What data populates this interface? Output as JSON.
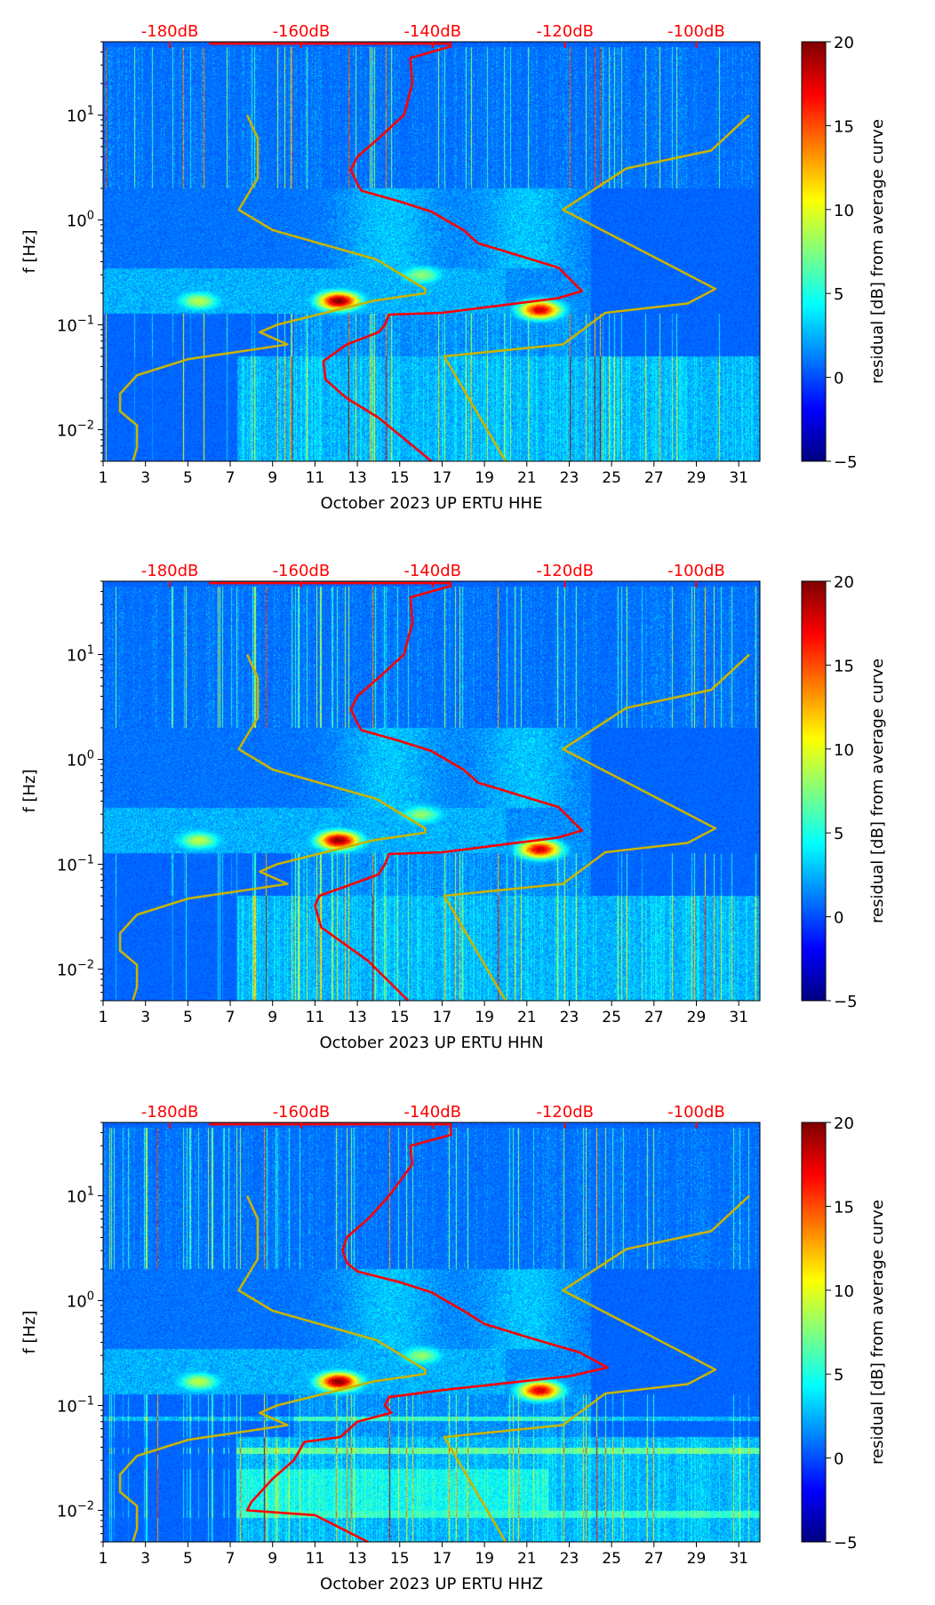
{
  "chart_data": [
    {
      "type": "heatmap",
      "xlabel": "October 2023 UP ERTU  HHE",
      "ylabel": "f [Hz]",
      "xlim": [
        1,
        32
      ],
      "ylim": [
        0.005,
        50
      ],
      "yscale": "log",
      "xticks": [
        "1",
        "3",
        "5",
        "7",
        "9",
        "11",
        "13",
        "15",
        "17",
        "19",
        "21",
        "23",
        "25",
        "27",
        "29",
        "31"
      ],
      "yticks": [
        {
          "value": 0.01,
          "base": "10",
          "exp": "−2"
        },
        {
          "value": 0.1,
          "base": "10",
          "exp": "−1"
        },
        {
          "value": 1,
          "base": "10",
          "exp": "0"
        },
        {
          "value": 10,
          "base": "10",
          "exp": "1"
        }
      ],
      "top_axis": [
        {
          "label": "-180dB",
          "day": 4.15
        },
        {
          "label": "-160dB",
          "day": 10.35
        },
        {
          "label": "-140dB",
          "day": 16.55
        },
        {
          "label": "-120dB",
          "day": 22.8
        },
        {
          "label": "-100dB",
          "day": 29.0
        }
      ],
      "colorbar": {
        "label": "residual [dB] from average curve",
        "min": -5,
        "max": 20,
        "ticks": [
          "−5",
          "0",
          "5",
          "10",
          "15",
          "20"
        ],
        "colormap": "jet"
      },
      "hotspots": [
        {
          "day": 12.1,
          "freq": 0.17,
          "value": 20
        },
        {
          "day": 21.6,
          "freq": 0.14,
          "value": 18
        },
        {
          "day": 5.5,
          "freq": 0.17,
          "value": 9
        },
        {
          "day": 16,
          "freq": 0.3,
          "value": 8
        }
      ],
      "series": [
        {
          "name": "PSD mean",
          "color": "#ff0000",
          "points": [
            [
              6,
              48
            ],
            [
              17.4,
              48
            ],
            [
              17.4,
              45
            ],
            [
              15.5,
              35
            ],
            [
              15.6,
              20
            ],
            [
              15.2,
              10
            ],
            [
              14,
              6
            ],
            [
              13,
              4
            ],
            [
              12.7,
              3
            ],
            [
              13,
              2.2
            ],
            [
              13.2,
              1.9
            ],
            [
              15,
              1.5
            ],
            [
              16.5,
              1.2
            ],
            [
              18,
              0.8
            ],
            [
              18.7,
              0.6
            ],
            [
              20,
              0.5
            ],
            [
              22.5,
              0.35
            ],
            [
              23.6,
              0.21
            ],
            [
              22.5,
              0.18
            ],
            [
              17,
              0.13
            ],
            [
              14.5,
              0.125
            ],
            [
              14.3,
              0.1
            ],
            [
              14,
              0.085
            ],
            [
              12.5,
              0.065
            ],
            [
              11.4,
              0.045
            ],
            [
              11.5,
              0.03
            ],
            [
              12.5,
              0.02
            ],
            [
              14,
              0.013
            ],
            [
              16.5,
              0.005
            ]
          ]
        },
        {
          "name": "NLNM",
          "color": "#c8b400",
          "points": [
            [
              7.8,
              10
            ],
            [
              8.3,
              6
            ],
            [
              8.3,
              2.5
            ],
            [
              7.4,
              1.25
            ],
            [
              9,
              0.8
            ],
            [
              13.9,
              0.42
            ],
            [
              16.2,
              0.22
            ],
            [
              16.2,
              0.2
            ],
            [
              13.8,
              0.17
            ],
            [
              9.2,
              0.1
            ],
            [
              8.4,
              0.085
            ],
            [
              9.7,
              0.065
            ],
            [
              5,
              0.047
            ],
            [
              2.6,
              0.033
            ],
            [
              1.8,
              0.022
            ],
            [
              1.8,
              0.015
            ],
            [
              2.6,
              0.011
            ],
            [
              2.6,
              0.0067
            ],
            [
              2.4,
              0.005
            ]
          ]
        },
        {
          "name": "NHNM",
          "color": "#c8b400",
          "points": [
            [
              31.5,
              10
            ],
            [
              29.7,
              4.6
            ],
            [
              25.7,
              3.1
            ],
            [
              22.7,
              1.25
            ],
            [
              29.9,
              0.22
            ],
            [
              28.6,
              0.16
            ],
            [
              24.7,
              0.13
            ],
            [
              22.7,
              0.065
            ],
            [
              17.1,
              0.05
            ],
            [
              20,
              0.005
            ]
          ]
        }
      ]
    },
    {
      "type": "heatmap",
      "xlabel": "October 2023 UP ERTU  HHN",
      "ylabel": "f [Hz]",
      "xlim": [
        1,
        32
      ],
      "ylim": [
        0.005,
        50
      ],
      "yscale": "log",
      "xticks": [
        "1",
        "3",
        "5",
        "7",
        "9",
        "11",
        "13",
        "15",
        "17",
        "19",
        "21",
        "23",
        "25",
        "27",
        "29",
        "31"
      ],
      "yticks": [
        {
          "value": 0.01,
          "base": "10",
          "exp": "−2"
        },
        {
          "value": 0.1,
          "base": "10",
          "exp": "−1"
        },
        {
          "value": 1,
          "base": "10",
          "exp": "0"
        },
        {
          "value": 10,
          "base": "10",
          "exp": "1"
        }
      ],
      "top_axis": [
        {
          "label": "-180dB",
          "day": 4.15
        },
        {
          "label": "-160dB",
          "day": 10.35
        },
        {
          "label": "-140dB",
          "day": 16.55
        },
        {
          "label": "-120dB",
          "day": 22.8
        },
        {
          "label": "-100dB",
          "day": 29.0
        }
      ],
      "colorbar": {
        "label": "residual [dB] from average curve",
        "min": -5,
        "max": 20,
        "ticks": [
          "−5",
          "0",
          "5",
          "10",
          "15",
          "20"
        ],
        "colormap": "jet"
      },
      "hotspots": [
        {
          "day": 12.1,
          "freq": 0.17,
          "value": 20
        },
        {
          "day": 21.6,
          "freq": 0.14,
          "value": 18
        },
        {
          "day": 5.5,
          "freq": 0.17,
          "value": 9
        },
        {
          "day": 16,
          "freq": 0.3,
          "value": 8
        }
      ],
      "series": [
        {
          "name": "PSD mean",
          "color": "#ff0000",
          "points": [
            [
              6,
              48
            ],
            [
              17.4,
              48
            ],
            [
              17.4,
              45
            ],
            [
              15.5,
              35
            ],
            [
              15.6,
              20
            ],
            [
              15.2,
              10
            ],
            [
              14,
              6
            ],
            [
              13,
              4
            ],
            [
              12.7,
              3
            ],
            [
              13,
              2.2
            ],
            [
              13.2,
              1.9
            ],
            [
              15,
              1.5
            ],
            [
              16.5,
              1.2
            ],
            [
              18,
              0.8
            ],
            [
              18.7,
              0.6
            ],
            [
              20,
              0.5
            ],
            [
              22.5,
              0.35
            ],
            [
              23.6,
              0.21
            ],
            [
              22.5,
              0.18
            ],
            [
              17,
              0.13
            ],
            [
              14.5,
              0.125
            ],
            [
              14.3,
              0.1
            ],
            [
              14,
              0.08
            ],
            [
              12.5,
              0.062
            ],
            [
              11.2,
              0.05
            ],
            [
              11,
              0.04
            ],
            [
              11.3,
              0.025
            ],
            [
              13.5,
              0.012
            ],
            [
              15.4,
              0.005
            ]
          ]
        },
        {
          "name": "NLNM",
          "color": "#c8b400",
          "points": [
            [
              7.8,
              10
            ],
            [
              8.3,
              6
            ],
            [
              8.3,
              2.5
            ],
            [
              7.4,
              1.25
            ],
            [
              9,
              0.8
            ],
            [
              13.9,
              0.42
            ],
            [
              16.2,
              0.22
            ],
            [
              16.2,
              0.2
            ],
            [
              13.8,
              0.17
            ],
            [
              9.2,
              0.1
            ],
            [
              8.4,
              0.085
            ],
            [
              9.7,
              0.065
            ],
            [
              5,
              0.047
            ],
            [
              2.6,
              0.033
            ],
            [
              1.8,
              0.022
            ],
            [
              1.8,
              0.015
            ],
            [
              2.6,
              0.011
            ],
            [
              2.6,
              0.0067
            ],
            [
              2.4,
              0.005
            ]
          ]
        },
        {
          "name": "NHNM",
          "color": "#c8b400",
          "points": [
            [
              31.5,
              10
            ],
            [
              29.7,
              4.6
            ],
            [
              25.7,
              3.1
            ],
            [
              22.7,
              1.25
            ],
            [
              29.9,
              0.22
            ],
            [
              28.6,
              0.16
            ],
            [
              24.7,
              0.13
            ],
            [
              22.7,
              0.065
            ],
            [
              17.1,
              0.05
            ],
            [
              20,
              0.005
            ]
          ]
        }
      ]
    },
    {
      "type": "heatmap",
      "xlabel": "October 2023 UP ERTU  HHZ",
      "ylabel": "f [Hz]",
      "xlim": [
        1,
        32
      ],
      "ylim": [
        0.005,
        50
      ],
      "yscale": "log",
      "xticks": [
        "1",
        "3",
        "5",
        "7",
        "9",
        "11",
        "13",
        "15",
        "17",
        "19",
        "21",
        "23",
        "25",
        "27",
        "29",
        "31"
      ],
      "yticks": [
        {
          "value": 0.01,
          "base": "10",
          "exp": "−2"
        },
        {
          "value": 0.1,
          "base": "10",
          "exp": "−1"
        },
        {
          "value": 1,
          "base": "10",
          "exp": "0"
        },
        {
          "value": 10,
          "base": "10",
          "exp": "1"
        }
      ],
      "top_axis": [
        {
          "label": "-180dB",
          "day": 4.15
        },
        {
          "label": "-160dB",
          "day": 10.35
        },
        {
          "label": "-140dB",
          "day": 16.55
        },
        {
          "label": "-120dB",
          "day": 22.8
        },
        {
          "label": "-100dB",
          "day": 29.0
        }
      ],
      "colorbar": {
        "label": "residual [dB] from average curve",
        "min": -5,
        "max": 20,
        "ticks": [
          "−5",
          "0",
          "5",
          "10",
          "15",
          "20"
        ],
        "colormap": "jet"
      },
      "hotspots": [
        {
          "day": 12.1,
          "freq": 0.17,
          "value": 20
        },
        {
          "day": 21.6,
          "freq": 0.14,
          "value": 18
        },
        {
          "day": 5.5,
          "freq": 0.17,
          "value": 9
        },
        {
          "day": 16,
          "freq": 0.3,
          "value": 8
        }
      ],
      "series": [
        {
          "name": "PSD mean",
          "color": "#ff0000",
          "points": [
            [
              6,
              48
            ],
            [
              17.4,
              48
            ],
            [
              17.4,
              38
            ],
            [
              15.5,
              30
            ],
            [
              15.6,
              20
            ],
            [
              14.5,
              10
            ],
            [
              13.5,
              6
            ],
            [
              12.5,
              4
            ],
            [
              12.3,
              3
            ],
            [
              12.5,
              2.3
            ],
            [
              13,
              1.9
            ],
            [
              15,
              1.5
            ],
            [
              16.5,
              1.2
            ],
            [
              18,
              0.8
            ],
            [
              19,
              0.6
            ],
            [
              21,
              0.45
            ],
            [
              23.5,
              0.32
            ],
            [
              24.8,
              0.23
            ],
            [
              23,
              0.19
            ],
            [
              17,
              0.14
            ],
            [
              14.5,
              0.12
            ],
            [
              14.3,
              0.1
            ],
            [
              14.6,
              0.085
            ],
            [
              13,
              0.07
            ],
            [
              12.2,
              0.05
            ],
            [
              10.5,
              0.045
            ],
            [
              10,
              0.03
            ],
            [
              9,
              0.02
            ],
            [
              8,
              0.012
            ],
            [
              7.8,
              0.01
            ],
            [
              11,
              0.009
            ],
            [
              13.5,
              0.005
            ]
          ]
        },
        {
          "name": "NLNM",
          "color": "#c8b400",
          "points": [
            [
              7.8,
              10
            ],
            [
              8.3,
              6
            ],
            [
              8.3,
              2.5
            ],
            [
              7.4,
              1.25
            ],
            [
              9,
              0.8
            ],
            [
              13.9,
              0.42
            ],
            [
              16.2,
              0.22
            ],
            [
              16.2,
              0.2
            ],
            [
              13.8,
              0.17
            ],
            [
              9.2,
              0.1
            ],
            [
              8.4,
              0.085
            ],
            [
              9.7,
              0.065
            ],
            [
              5,
              0.047
            ],
            [
              2.6,
              0.033
            ],
            [
              1.8,
              0.022
            ],
            [
              1.8,
              0.015
            ],
            [
              2.6,
              0.011
            ],
            [
              2.6,
              0.0067
            ],
            [
              2.4,
              0.005
            ]
          ]
        },
        {
          "name": "NHNM",
          "color": "#c8b400",
          "points": [
            [
              31.5,
              10
            ],
            [
              29.7,
              4.6
            ],
            [
              25.7,
              3.1
            ],
            [
              22.7,
              1.25
            ],
            [
              29.9,
              0.22
            ],
            [
              28.6,
              0.16
            ],
            [
              24.7,
              0.13
            ],
            [
              22.7,
              0.065
            ],
            [
              17.1,
              0.05
            ],
            [
              20,
              0.005
            ]
          ]
        }
      ]
    }
  ]
}
